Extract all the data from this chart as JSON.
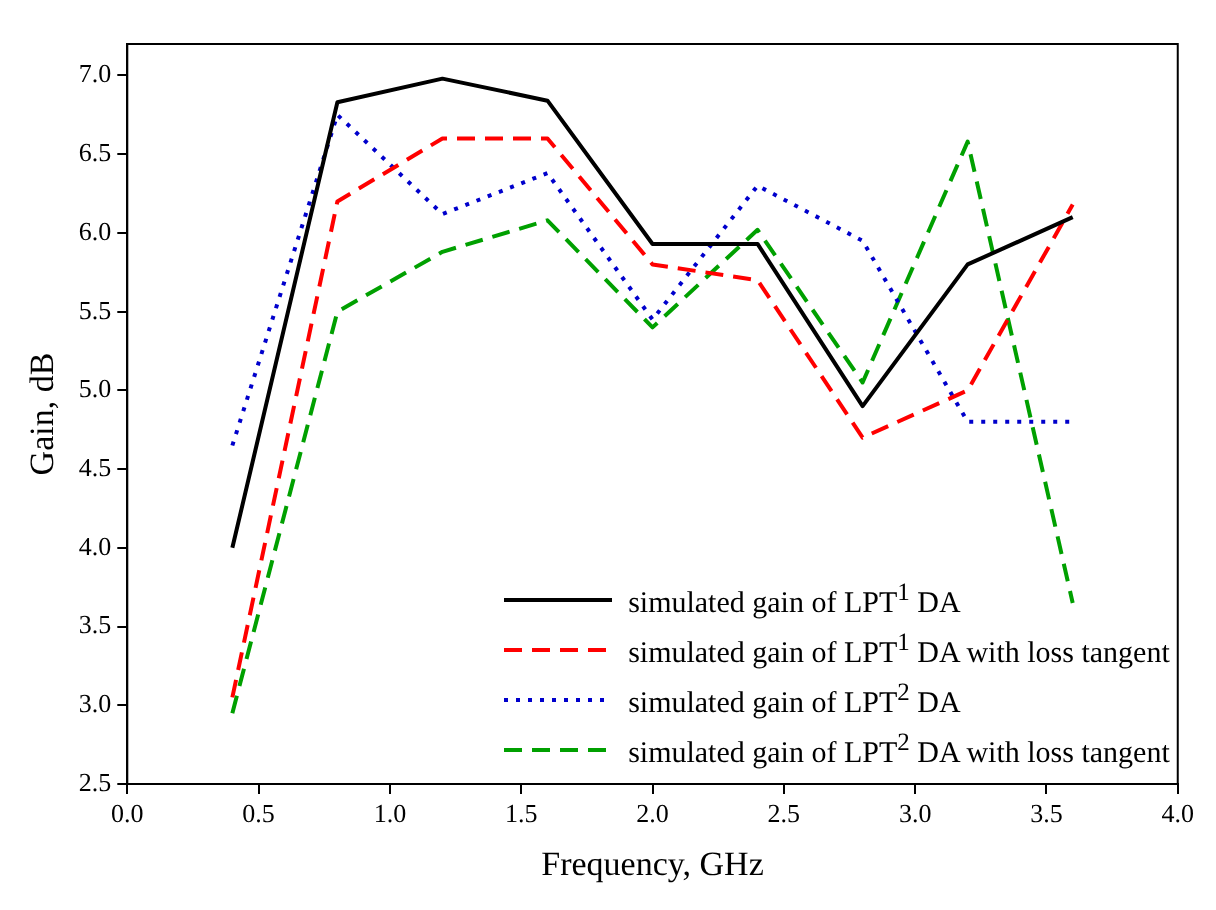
{
  "chart_data": {
    "type": "line",
    "xlabel": "Frequency, GHz",
    "ylabel": "Gain, dB",
    "x": [
      0.4,
      0.8,
      1.2,
      1.6,
      2.0,
      2.4,
      2.8,
      3.2,
      3.6
    ],
    "series": [
      {
        "name": "simulated gain of LPT$^{1}$ DA",
        "color": "#000000",
        "line_style": "solid",
        "values": [
          4.0,
          6.83,
          6.98,
          6.84,
          5.93,
          5.93,
          4.9,
          5.8,
          6.1
        ]
      },
      {
        "name": "simulated gain of LPT$^{1}$ DA with loss tangent",
        "color": "#ff0000",
        "line_style": "dashed",
        "values": [
          3.05,
          6.2,
          6.6,
          6.6,
          5.8,
          5.7,
          4.7,
          5.0,
          6.18
        ]
      },
      {
        "name": "simulated gain of LPT$^{2}$ DA",
        "color": "#0000cc",
        "line_style": "dotted",
        "values": [
          4.65,
          6.75,
          6.12,
          6.38,
          5.45,
          6.3,
          5.95,
          4.8,
          4.8
        ]
      },
      {
        "name": "simulated gain of LPT$^{2}$ DA with loss tangent",
        "color": "#00a000",
        "line_style": "dashed",
        "values": [
          2.95,
          5.5,
          5.88,
          6.08,
          5.4,
          6.02,
          5.05,
          6.58,
          3.65
        ]
      }
    ],
    "xlim": [
      0,
      4
    ],
    "xticks": [
      {
        "value": 0,
        "label": "0.0"
      },
      0.5,
      {
        "value": 1,
        "label": "1.0"
      },
      1.5,
      {
        "value": 2,
        "label": "2.0"
      },
      2.5,
      {
        "value": 3,
        "label": "3.0"
      },
      3.5,
      {
        "value": 4,
        "label": "4.0"
      }
    ],
    "ylim": [
      2.5,
      7.2
    ],
    "yticks": [
      2.5,
      {
        "value": 3,
        "label": "3.0"
      },
      3.5,
      {
        "value": 4,
        "label": "4.0"
      },
      4.5,
      {
        "value": 5,
        "label": "5.0"
      },
      5.5,
      {
        "value": 6,
        "label": "6.0"
      },
      6.5,
      {
        "value": 7,
        "label": "7.0"
      }
    ],
    "grid": false,
    "legend": "bottom right",
    "marker": "none"
  }
}
